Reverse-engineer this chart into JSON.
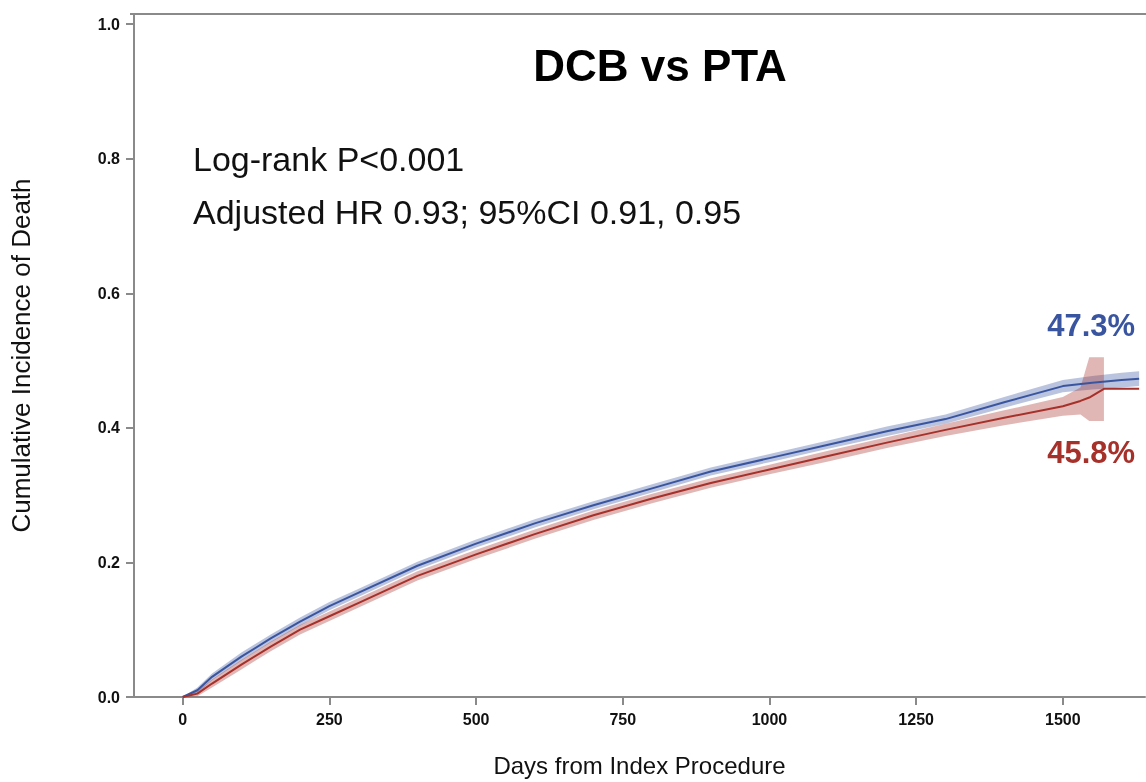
{
  "chart_data": {
    "type": "line",
    "title": "DCB vs PTA",
    "xlabel": "Days from Index Procedure",
    "ylabel": "Cumulative Incidence of Death",
    "annotations": [
      "Log-rank P<0.001",
      "Adjusted HR 0.93; 95%CI 0.91, 0.95"
    ],
    "series": [
      {
        "color": "#3a55a0",
        "x": [
          0,
          25,
          50,
          100,
          150,
          200,
          250,
          300,
          400,
          500,
          600,
          700,
          800,
          900,
          1000,
          1100,
          1200,
          1300,
          1400,
          1500,
          1550,
          1600,
          1630
        ],
        "values": [
          0,
          0.01,
          0.03,
          0.06,
          0.087,
          0.112,
          0.135,
          0.155,
          0.195,
          0.228,
          0.258,
          0.285,
          0.31,
          0.335,
          0.355,
          0.375,
          0.395,
          0.413,
          0.438,
          0.462,
          0.467,
          0.471,
          0.473
        ],
        "lower": [
          0,
          0.006,
          0.025,
          0.054,
          0.081,
          0.106,
          0.129,
          0.149,
          0.189,
          0.222,
          0.252,
          0.279,
          0.304,
          0.329,
          0.349,
          0.369,
          0.388,
          0.406,
          0.43,
          0.453,
          0.457,
          0.46,
          0.462
        ],
        "upper": [
          0,
          0.014,
          0.035,
          0.066,
          0.093,
          0.118,
          0.141,
          0.161,
          0.201,
          0.234,
          0.264,
          0.291,
          0.316,
          0.341,
          0.361,
          0.381,
          0.402,
          0.42,
          0.446,
          0.471,
          0.477,
          0.482,
          0.484
        ],
        "value_labels": [
          null,
          null,
          null,
          null,
          null,
          null,
          null,
          null,
          null,
          null,
          null,
          null,
          null,
          null,
          null,
          null,
          null,
          null,
          null,
          null,
          null,
          null,
          "47.3%"
        ]
      },
      {
        "color": "#a6302a",
        "x": [
          0,
          25,
          50,
          100,
          150,
          200,
          250,
          300,
          400,
          500,
          600,
          700,
          800,
          900,
          1000,
          1100,
          1200,
          1300,
          1400,
          1500,
          1530,
          1545,
          1570,
          1630
        ],
        "values": [
          0,
          0.005,
          0.02,
          0.048,
          0.075,
          0.1,
          0.12,
          0.14,
          0.18,
          0.212,
          0.242,
          0.27,
          0.295,
          0.318,
          0.338,
          0.358,
          0.378,
          0.397,
          0.415,
          0.432,
          0.44,
          0.445,
          0.458,
          0.458
        ],
        "lower": [
          0,
          0.001,
          0.014,
          0.041,
          0.068,
          0.093,
          0.113,
          0.133,
          0.173,
          0.205,
          0.235,
          0.263,
          0.288,
          0.311,
          0.331,
          0.35,
          0.37,
          0.388,
          0.404,
          0.418,
          0.42,
          0.41,
          0.41,
          null
        ],
        "upper": [
          0,
          0.009,
          0.026,
          0.055,
          0.082,
          0.107,
          0.127,
          0.147,
          0.187,
          0.219,
          0.249,
          0.277,
          0.302,
          0.325,
          0.345,
          0.366,
          0.386,
          0.406,
          0.426,
          0.446,
          0.46,
          0.505,
          0.505,
          null
        ],
        "value_labels": [
          null,
          null,
          null,
          null,
          null,
          null,
          null,
          null,
          null,
          null,
          null,
          null,
          null,
          null,
          null,
          null,
          null,
          null,
          null,
          null,
          null,
          null,
          null,
          "45.8%"
        ]
      }
    ],
    "xlim": [
      -83,
      1640
    ],
    "xticks": [
      0,
      250,
      500,
      750,
      1000,
      1250,
      1500
    ],
    "ylim": [
      0,
      1.015
    ],
    "yticks": [
      {
        "value": 0,
        "label": "0.0"
      },
      {
        "value": 0.2,
        "label": "0.2"
      },
      {
        "value": 0.4,
        "label": "0.4"
      },
      {
        "value": 0.6,
        "label": "0.6"
      },
      {
        "value": 0.8,
        "label": "0.8"
      },
      {
        "value": 1,
        "label": "1.0"
      }
    ],
    "grid": false,
    "marker": "none",
    "line_style": "solid"
  }
}
